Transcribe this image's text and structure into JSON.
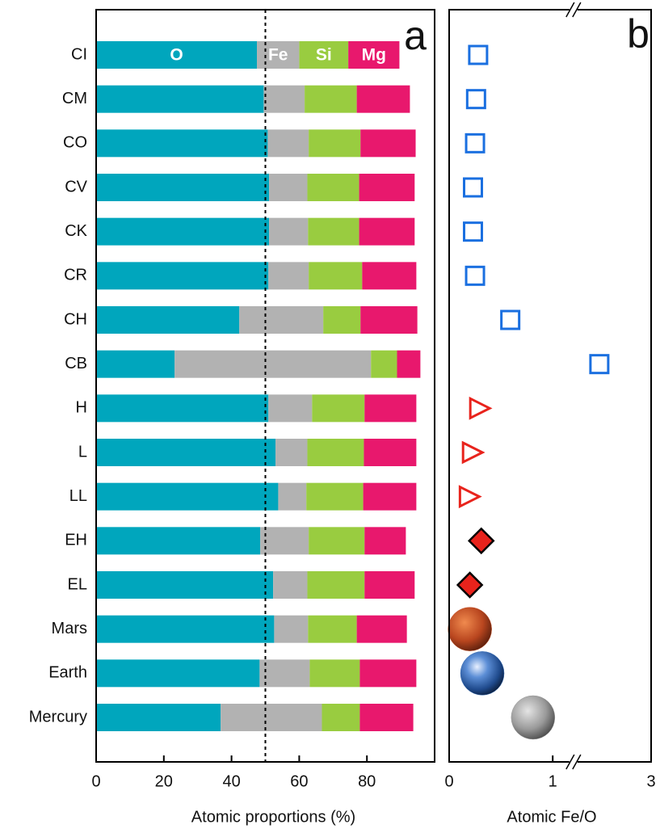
{
  "chart_data": [
    {
      "type": "stacked-bar",
      "orientation": "horizontal",
      "panel": "a",
      "xlabel": "Atomic proportions (%)",
      "categories": [
        "CI",
        "CM",
        "CO",
        "CV",
        "CK",
        "CR",
        "CH",
        "CB",
        "H",
        "L",
        "LL",
        "EH",
        "EL",
        "Mars",
        "Earth",
        "Mercury"
      ],
      "series": [
        {
          "name": "O",
          "color": "#00a6bd",
          "values": [
            47.5,
            49.5,
            50.7,
            51.1,
            51.1,
            50.9,
            42.3,
            23.2,
            50.9,
            53.0,
            53.8,
            48.5,
            52.3,
            52.6,
            48.3,
            36.8
          ]
        },
        {
          "name": "Fe",
          "color": "#b2b2b2",
          "values": [
            12.5,
            12.1,
            12.1,
            11.3,
            11.5,
            11.9,
            24.8,
            58.0,
            12.9,
            9.4,
            8.3,
            14.3,
            10.1,
            10.0,
            14.8,
            29.9
          ]
        },
        {
          "name": "Si",
          "color": "#99cc40",
          "values": [
            14.5,
            15.4,
            15.3,
            15.3,
            15.1,
            15.8,
            11.0,
            7.7,
            15.5,
            16.7,
            16.8,
            16.5,
            16.9,
            14.4,
            14.8,
            11.2
          ]
        },
        {
          "name": "Mg",
          "color": "#e8186d",
          "values": [
            15.1,
            15.7,
            16.3,
            16.4,
            16.4,
            16.0,
            16.8,
            6.9,
            15.3,
            15.5,
            15.7,
            12.2,
            14.8,
            14.8,
            16.7,
            15.8
          ]
        }
      ],
      "xlim": [
        0,
        100
      ],
      "xticks": [
        0,
        20,
        40,
        60,
        80
      ],
      "reference_line": 50
    },
    {
      "type": "scatter",
      "panel": "b",
      "xlabel": "Atomic Fe/O",
      "values": [
        0.28,
        0.26,
        0.25,
        0.23,
        0.23,
        0.25,
        0.59,
        2.5,
        0.29,
        0.22,
        0.19,
        0.31,
        0.2,
        0.2,
        0.32,
        0.81
      ],
      "markers": [
        "square",
        "square",
        "square",
        "square",
        "square",
        "square",
        "square",
        "square",
        "triangle",
        "triangle",
        "triangle",
        "diamond",
        "diamond",
        "mars",
        "earth",
        "mercury"
      ],
      "colors": [
        "#1a6fe0",
        "#1a6fe0",
        "#1a6fe0",
        "#1a6fe0",
        "#1a6fe0",
        "#1a6fe0",
        "#1a6fe0",
        "#1a6fe0",
        "#e8231c",
        "#e8231c",
        "#e8231c",
        "#e8231c",
        "#e8231c",
        "#c4532a",
        "#3a6fb8",
        "#9a9a9a"
      ],
      "xlim": [
        0,
        3
      ],
      "xbreak": [
        1.2,
        2.25
      ],
      "xticks": [
        0,
        1,
        3
      ]
    }
  ]
}
